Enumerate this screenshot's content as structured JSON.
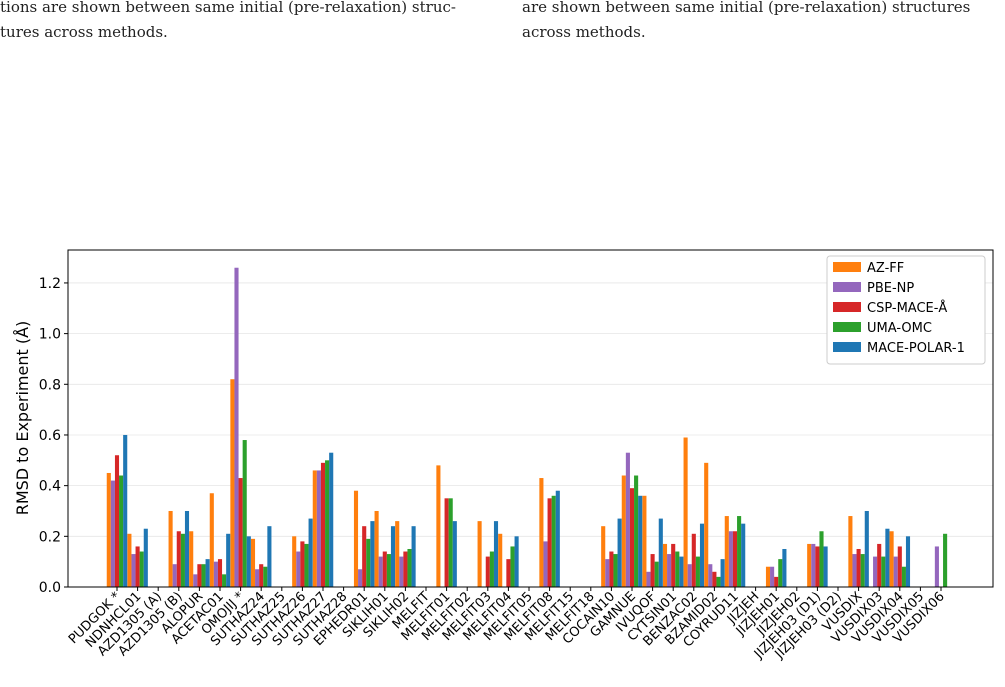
{
  "captions": {
    "left": [
      "tions are shown between same initial (pre-relaxation) struc-",
      "tures across methods."
    ],
    "right": [
      "are shown between same initial (pre-relaxation) structures",
      "across methods."
    ]
  },
  "chart_data": {
    "type": "bar",
    "y_label": "RMSD to Experiment (Å)",
    "categories": [
      "PUDGOK *",
      "NDNHCL01",
      "AZD1305 (A)",
      "AZD1305 (B)",
      "ALOPUR",
      "ACETAC01",
      "OMOJIJ *",
      "SUTHAZ24",
      "SUTHAZ25",
      "SUTHAZ26",
      "SUTHAZ27",
      "SUTHAZ28",
      "EPHEDR01",
      "SIKLIH01",
      "SIKLIH02",
      "MELFIT",
      "MELFIT01",
      "MELFIT02",
      "MELFIT03",
      "MELFIT04",
      "MELFIT05",
      "MELFIT08",
      "MELFIT15",
      "MELFIT18",
      "COCAIN10",
      "GAMNUE",
      "IVUQOF",
      "CYTSIN01",
      "BENZAC02",
      "BZAMID02",
      "COYRUD11",
      "JIZJEH",
      "JIZJEH01",
      "JIZJEH02",
      "JIZJEH03 (D1)",
      "JIZJEH03 (D2)",
      "VUSDIX",
      "VUSDIX03",
      "VUSDIX04",
      "VUSDIX05",
      "VUSDIX06"
    ],
    "series": [
      {
        "name": "AZ-FF",
        "color": "#ff7f0e",
        "values": [
          0.45,
          0.21,
          null,
          0.3,
          0.22,
          0.37,
          0.82,
          0.19,
          null,
          0.2,
          0.46,
          null,
          0.38,
          0.3,
          0.26,
          null,
          0.48,
          null,
          0.26,
          0.21,
          null,
          0.43,
          null,
          null,
          0.24,
          0.44,
          0.36,
          0.17,
          0.59,
          0.49,
          0.28,
          null,
          0.08,
          null,
          0.17,
          null,
          0.28,
          null,
          0.22,
          null,
          null
        ]
      },
      {
        "name": "PBE-NP",
        "color": "#9467bd",
        "values": [
          0.42,
          0.13,
          null,
          0.09,
          0.05,
          0.1,
          1.26,
          0.07,
          null,
          0.14,
          0.46,
          null,
          0.07,
          0.12,
          0.12,
          null,
          null,
          null,
          null,
          null,
          null,
          0.18,
          null,
          null,
          0.11,
          0.53,
          0.06,
          0.13,
          0.09,
          0.09,
          0.22,
          null,
          0.08,
          null,
          0.17,
          null,
          0.13,
          0.12,
          0.12,
          null,
          0.16
        ]
      },
      {
        "name": "CSP-MACE-Å",
        "color": "#d62728",
        "values": [
          0.52,
          0.16,
          null,
          0.22,
          0.09,
          0.11,
          0.43,
          0.09,
          null,
          0.18,
          0.49,
          null,
          0.24,
          0.14,
          0.14,
          null,
          0.35,
          null,
          0.12,
          0.11,
          null,
          0.35,
          null,
          null,
          0.14,
          0.39,
          0.13,
          0.17,
          0.21,
          0.06,
          0.22,
          null,
          0.04,
          null,
          0.16,
          null,
          0.15,
          0.17,
          0.16,
          null,
          null
        ]
      },
      {
        "name": "UMA-OMC",
        "color": "#2ca02c",
        "values": [
          0.44,
          0.14,
          null,
          0.21,
          0.09,
          0.05,
          0.58,
          0.08,
          null,
          0.17,
          0.5,
          null,
          0.19,
          0.13,
          0.15,
          null,
          0.35,
          null,
          0.14,
          0.16,
          null,
          0.36,
          null,
          null,
          0.13,
          0.44,
          0.1,
          0.14,
          0.12,
          0.04,
          0.28,
          null,
          0.11,
          null,
          0.22,
          null,
          0.13,
          0.12,
          0.08,
          null,
          0.21
        ]
      },
      {
        "name": "MACE-POLAR-1",
        "color": "#1f77b4",
        "values": [
          0.6,
          0.23,
          null,
          0.3,
          0.11,
          0.21,
          0.2,
          0.24,
          null,
          0.27,
          0.53,
          null,
          0.26,
          0.24,
          0.24,
          null,
          0.26,
          null,
          0.26,
          0.2,
          null,
          0.38,
          null,
          null,
          0.27,
          0.36,
          0.27,
          0.12,
          0.25,
          0.11,
          0.25,
          null,
          0.15,
          null,
          0.16,
          null,
          0.3,
          0.23,
          0.2,
          null,
          null
        ]
      }
    ],
    "ylim": [
      0,
      1.33
    ],
    "yticks": [
      {
        "value": 0,
        "label": "0.0"
      },
      {
        "value": 0.2,
        "label": "0.2"
      },
      {
        "value": 0.4,
        "label": "0.4"
      },
      {
        "value": 0.6,
        "label": "0.6"
      },
      {
        "value": 0.8,
        "label": "0.8"
      },
      {
        "value": 1.0,
        "label": "1.0"
      },
      {
        "value": 1.2,
        "label": "1.2"
      }
    ],
    "grid": true,
    "legend": "upper right"
  }
}
